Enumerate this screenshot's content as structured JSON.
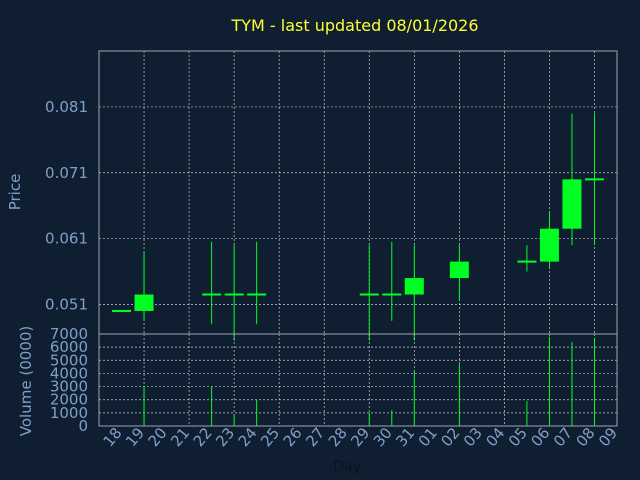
{
  "chart_data": [
    {
      "type": "candlestick",
      "title": "TYM - last updated 08/01/2026",
      "ylabel": "Price",
      "ylim": [
        0.0465,
        0.0895
      ],
      "yticks": [
        0.051,
        0.061,
        0.071,
        0.081
      ],
      "ytick_labels": [
        "0.051",
        "0.061",
        "0.071",
        "0.081"
      ],
      "colors": {
        "candle": "#00ff22",
        "background": "#0f1e30",
        "title": "#ffff33",
        "axis_text": "#7fa0c8"
      },
      "series": [
        {
          "day": "18",
          "open": 0.05,
          "high": 0.05,
          "low": 0.05,
          "close": 0.05
        },
        {
          "day": "19",
          "open": 0.05,
          "high": 0.059,
          "low": 0.0485,
          "close": 0.0525
        },
        {
          "day": "22",
          "open": 0.0525,
          "high": 0.0605,
          "low": 0.048,
          "close": 0.0525
        },
        {
          "day": "23",
          "open": 0.0525,
          "high": 0.06,
          "low": 0.0455,
          "close": 0.0525
        },
        {
          "day": "24",
          "open": 0.0525,
          "high": 0.0605,
          "low": 0.048,
          "close": 0.0525
        },
        {
          "day": "29",
          "open": 0.0525,
          "high": 0.06,
          "low": 0.0455,
          "close": 0.0525
        },
        {
          "day": "30",
          "open": 0.0525,
          "high": 0.0605,
          "low": 0.0485,
          "close": 0.0525
        },
        {
          "day": "31",
          "open": 0.0525,
          "high": 0.06,
          "low": 0.0455,
          "close": 0.055
        },
        {
          "day": "02",
          "open": 0.055,
          "high": 0.06,
          "low": 0.0515,
          "close": 0.0575
        },
        {
          "day": "05",
          "open": 0.0575,
          "high": 0.06,
          "low": 0.056,
          "close": 0.0575
        },
        {
          "day": "06",
          "open": 0.0575,
          "high": 0.065,
          "low": 0.0565,
          "close": 0.0625
        },
        {
          "day": "07",
          "open": 0.0625,
          "high": 0.08,
          "low": 0.06,
          "close": 0.07
        },
        {
          "day": "08",
          "open": 0.07,
          "high": 0.08,
          "low": 0.06,
          "close": 0.07
        }
      ]
    },
    {
      "type": "bar",
      "xlabel": "Day",
      "ylabel": "Volume (0000)",
      "ylim": [
        0,
        7000
      ],
      "yticks": [
        0,
        1000,
        2000,
        3000,
        4000,
        5000,
        6000,
        7000
      ],
      "ytick_labels": [
        "0",
        "1000",
        "2000",
        "3000",
        "4000",
        "5000",
        "6000",
        "7000"
      ],
      "categories": [
        "18",
        "19",
        "20",
        "21",
        "22",
        "23",
        "24",
        "25",
        "26",
        "27",
        "28",
        "29",
        "30",
        "31",
        "01",
        "02",
        "03",
        "04",
        "05",
        "06",
        "07",
        "08",
        "09"
      ],
      "values": [
        0,
        3000,
        0,
        0,
        3000,
        900,
        2000,
        0,
        0,
        0,
        0,
        1000,
        1200,
        4200,
        0,
        4700,
        0,
        0,
        1900,
        6800,
        6400,
        6700,
        0
      ]
    }
  ]
}
